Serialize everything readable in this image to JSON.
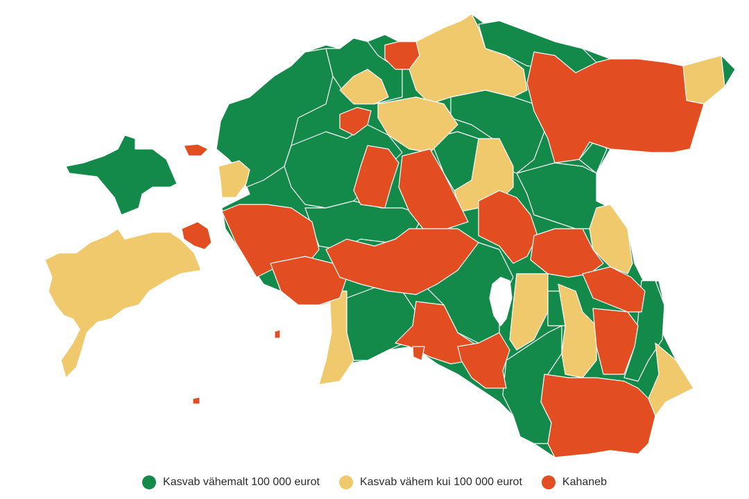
{
  "legend": {
    "grow_large": {
      "label": "Kasvab vähemalt 100 000 eurot",
      "color": "#148a4a"
    },
    "grow_small": {
      "label": "Kasvab vähem kui 100 000 eurot",
      "color": "#efc96c"
    },
    "decline": {
      "label": "Kahaneb",
      "color": "#e24e22"
    }
  }
}
